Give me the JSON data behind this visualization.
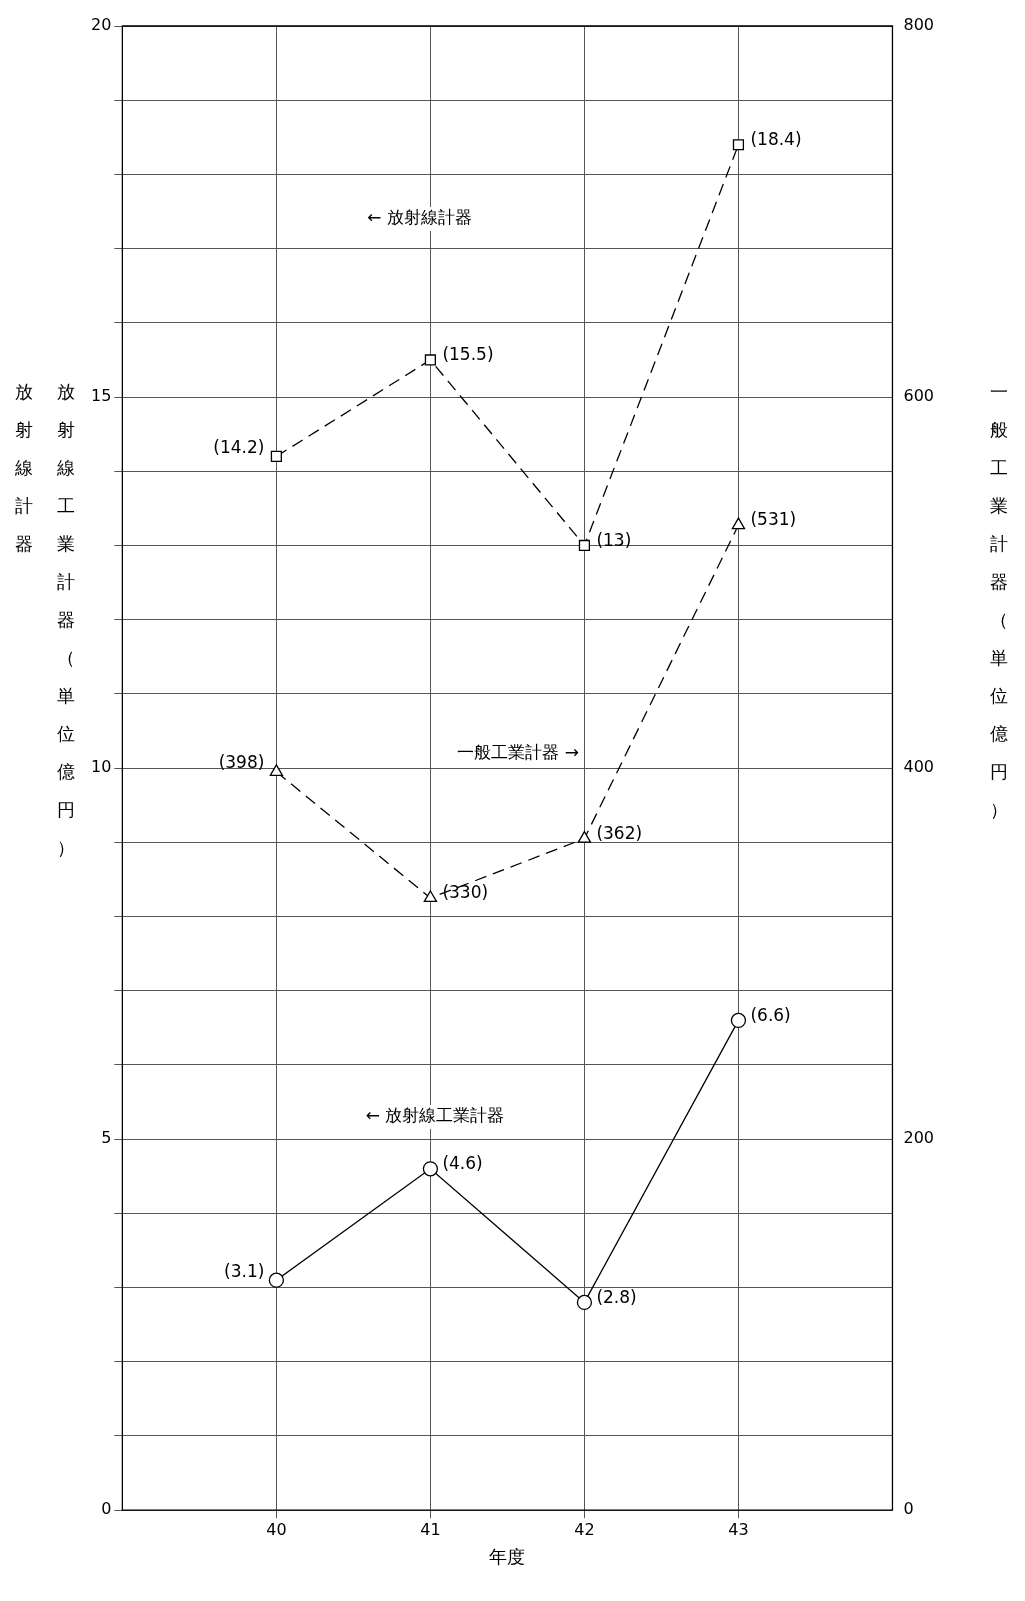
{
  "chart_data": {
    "type": "line",
    "xlabel": "年度",
    "ylabel": "放射線工業計器（単位億円）",
    "y2label": "一般工業計器（単位億円）",
    "x": [
      40,
      41,
      42,
      43
    ],
    "xlim": [
      39,
      44
    ],
    "xticks": [
      40,
      41,
      42,
      43
    ],
    "ylim": [
      0,
      20
    ],
    "yticks": [
      0,
      {
        "value": 1,
        "label": null
      },
      {
        "value": 2,
        "label": null
      },
      {
        "value": 3,
        "label": null
      },
      {
        "value": 4,
        "label": null
      },
      5,
      {
        "value": 6,
        "label": null
      },
      {
        "value": 7,
        "label": null
      },
      {
        "value": 8,
        "label": null
      },
      {
        "value": 9,
        "label": null
      },
      10,
      {
        "value": 11,
        "label": null
      },
      {
        "value": 12,
        "label": null
      },
      {
        "value": 13,
        "label": null
      },
      {
        "value": 14,
        "label": null
      },
      15,
      {
        "value": 16,
        "label": null
      },
      {
        "value": 17,
        "label": null
      },
      {
        "value": 18,
        "label": null
      },
      {
        "value": 19,
        "label": null
      },
      20
    ],
    "y2lim": [
      0,
      800
    ],
    "y2ticks": [
      0,
      200,
      400,
      600,
      800
    ],
    "grid": true,
    "legend": false,
    "series": [
      {
        "color": "#000000",
        "marker": "square",
        "line_style": "dashed",
        "values": [
          14.2,
          15.5,
          13,
          18.4
        ],
        "value_labels": [
          "(14.2)",
          "(15.5)",
          "(13)",
          "(18.4)"
        ]
      },
      {
        "color": "#000000",
        "marker": "triangle",
        "line_style": "dashed",
        "axis": "y2",
        "values": [
          398,
          330,
          362,
          531
        ],
        "value_labels": [
          "(398)",
          "(330)",
          "(362)",
          "(531)"
        ]
      },
      {
        "color": "#000000",
        "marker": "circle",
        "line_style": "solid",
        "values": [
          3.1,
          4.6,
          2.8,
          6.6
        ],
        "value_labels": [
          "(3.1)",
          "(4.6)",
          "(2.8)",
          "(6.6)"
        ]
      }
    ],
    "annotations": [
      "← 放射線計器",
      "一般工業計器 →",
      "← 放射線工業計器",
      "放射線計器"
    ]
  }
}
